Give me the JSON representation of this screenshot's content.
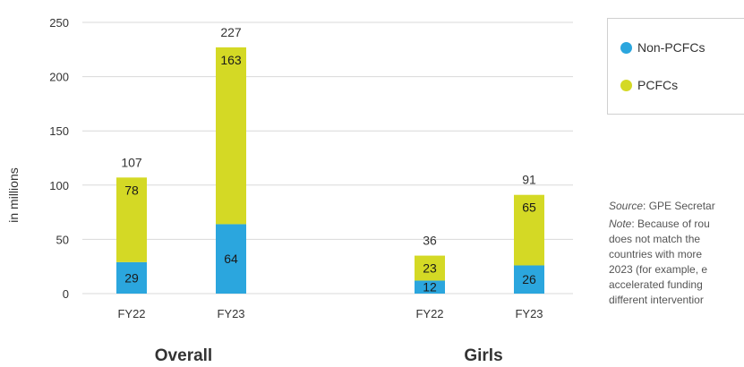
{
  "colors": {
    "non_pcfc": "#2BA6DE",
    "pcfc": "#D4D925",
    "grid": "#d9d9d9",
    "text": "#333333"
  },
  "chart_data": {
    "type": "bar",
    "stacked": true,
    "ylabel": "in millions",
    "ylim": [
      0,
      250
    ],
    "yticks": [
      0,
      50,
      100,
      150,
      200,
      250
    ],
    "grid": true,
    "legend_position": "right",
    "groups": [
      {
        "label": "Overall",
        "categories": [
          "FY22",
          "FY23"
        ],
        "series": [
          {
            "name": "Non-PCFCs",
            "values": [
              29,
              64
            ]
          },
          {
            "name": "PCFCs",
            "values": [
              78,
              163
            ]
          }
        ],
        "totals": [
          107,
          227
        ]
      },
      {
        "label": "Girls",
        "categories": [
          "FY22",
          "FY23"
        ],
        "series": [
          {
            "name": "Non-PCFCs",
            "values": [
              12,
              26
            ]
          },
          {
            "name": "PCFCs",
            "values": [
              23,
              65
            ]
          }
        ],
        "totals": [
          36,
          91
        ]
      }
    ]
  },
  "legend": {
    "items": [
      "Non-PCFCs",
      "PCFCs"
    ]
  },
  "notes": {
    "source_label": "Source",
    "source_text": ": GPE Secretar",
    "note_label": "Note",
    "note_lines": [
      ": Because of rou",
      "does not match the",
      "countries with more",
      "2023 (for example, e",
      "accelerated funding",
      "different interventior"
    ]
  }
}
